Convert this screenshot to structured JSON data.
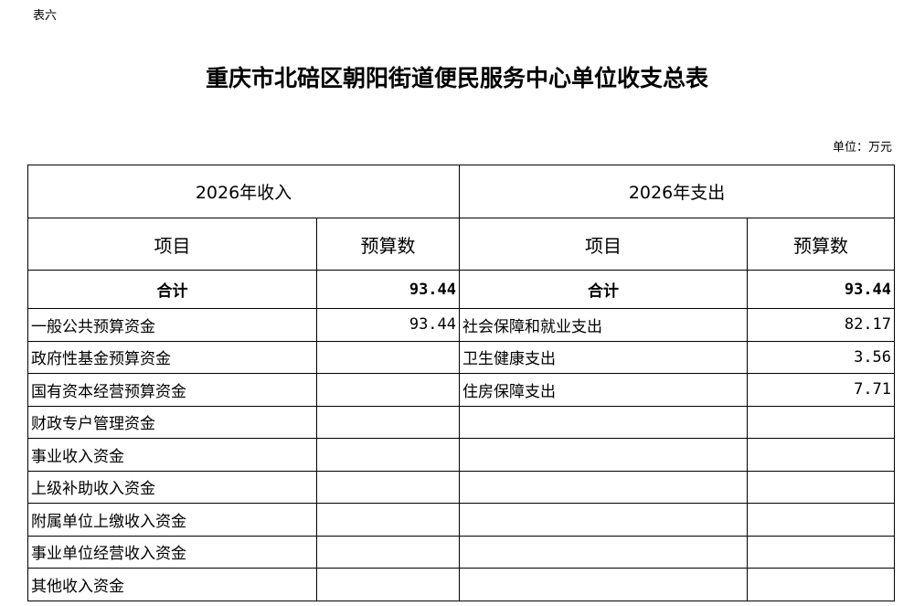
{
  "tag": "表六",
  "title": "重庆市北碚区朝阳街道便民服务中心单位收支总表",
  "unit": "单位：万元",
  "income_header": "2026年收入",
  "expense_header": "2026年支出",
  "col_item": "项目",
  "col_budget": "预算数",
  "total_label": "合计",
  "income_total": "93.44",
  "expense_total": "93.44",
  "rows": [
    {
      "in_item": "一般公共预算资金",
      "in_val": "93.44",
      "out_item": "社会保障和就业支出",
      "out_val": "82.17"
    },
    {
      "in_item": "政府性基金预算资金",
      "in_val": "",
      "out_item": "卫生健康支出",
      "out_val": "3.56"
    },
    {
      "in_item": "国有资本经营预算资金",
      "in_val": "",
      "out_item": "住房保障支出",
      "out_val": "7.71"
    },
    {
      "in_item": "财政专户管理资金",
      "in_val": "",
      "out_item": "",
      "out_val": ""
    },
    {
      "in_item": "事业收入资金",
      "in_val": "",
      "out_item": "",
      "out_val": ""
    },
    {
      "in_item": "上级补助收入资金",
      "in_val": "",
      "out_item": "",
      "out_val": ""
    },
    {
      "in_item": "附属单位上缴收入资金",
      "in_val": "",
      "out_item": "",
      "out_val": ""
    },
    {
      "in_item": "事业单位经营收入资金",
      "in_val": "",
      "out_item": "",
      "out_val": ""
    },
    {
      "in_item": "其他收入资金",
      "in_val": "",
      "out_item": "",
      "out_val": ""
    }
  ]
}
